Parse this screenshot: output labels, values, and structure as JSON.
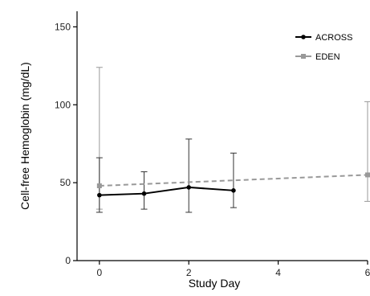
{
  "chart_data": {
    "type": "line",
    "xlabel": "Study Day",
    "ylabel": "Cell-free Hemoglobin (mg/dL)",
    "xlim": [
      -0.5,
      6
    ],
    "ylim": [
      0,
      160
    ],
    "xticks": [
      0,
      2,
      4,
      6
    ],
    "yticks": [
      0,
      50,
      100,
      150
    ],
    "grid": false,
    "legend_position": "top-right",
    "series": [
      {
        "name": "ACROSS",
        "color": "#000000",
        "line_style": "solid",
        "marker": "circle",
        "x": [
          0,
          1,
          2,
          3
        ],
        "y": [
          42,
          43,
          47,
          45
        ],
        "error_low": [
          31,
          33,
          31,
          34
        ],
        "error_high": [
          66,
          57,
          78,
          69
        ]
      },
      {
        "name": "EDEN",
        "color": "#999999",
        "line_style": "dashed",
        "marker": "square",
        "x": [
          0,
          6
        ],
        "y": [
          48,
          55
        ],
        "error_low": [
          33,
          38
        ],
        "error_high": [
          124,
          102
        ]
      }
    ]
  }
}
